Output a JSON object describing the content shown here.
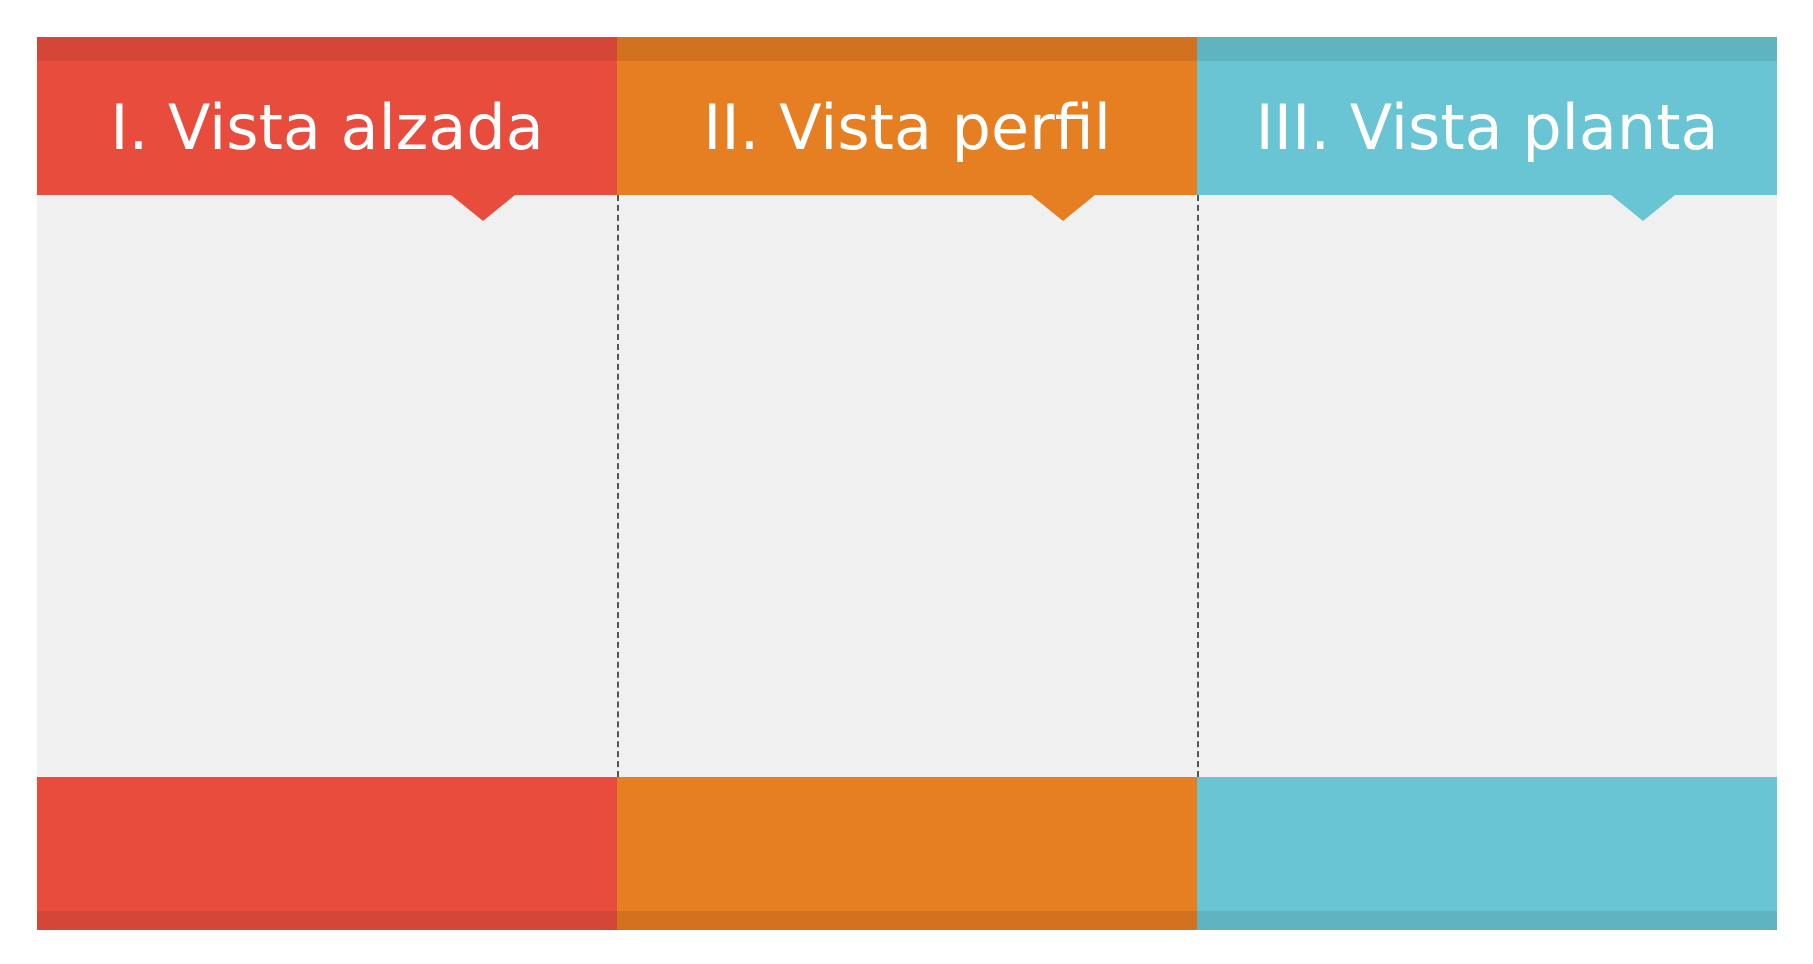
{
  "columns": [
    {
      "label": "I. Vista alzada",
      "color": "#e84c3d",
      "dark_color": "#d44637"
    },
    {
      "label": "II. Vista perfil",
      "color": "#e57f22",
      "dark_color": "#d2711f"
    },
    {
      "label": "III. Vista planta",
      "color": "#69c4d3",
      "dark_color": "#60b3c0"
    }
  ],
  "body_color": "#f0f0f0",
  "divider_color": "#555555"
}
